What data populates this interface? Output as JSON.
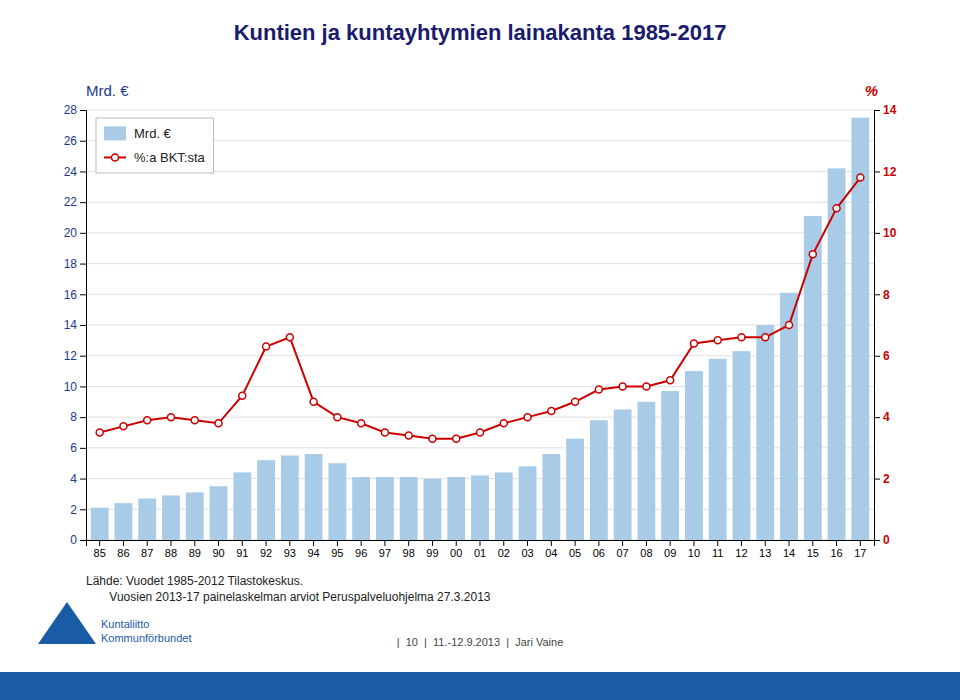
{
  "chart_data": {
    "type": "bar",
    "title": "Kuntien ja kuntayhtymien lainakanta 1985-2017",
    "ylabel": "Mrd. €",
    "y2label": "%",
    "categories": [
      "85",
      "86",
      "87",
      "88",
      "89",
      "90",
      "91",
      "92",
      "93",
      "94",
      "95",
      "96",
      "97",
      "98",
      "99",
      "00",
      "01",
      "02",
      "03",
      "04",
      "05",
      "06",
      "07",
      "08",
      "09",
      "10",
      "11",
      "12",
      "13",
      "14",
      "15",
      "16",
      "17"
    ],
    "series": [
      {
        "name": "Mrd. €",
        "type": "bar",
        "color": "#a8cce8",
        "values": [
          2.1,
          2.4,
          2.7,
          2.9,
          3.1,
          3.5,
          4.4,
          5.2,
          5.5,
          5.6,
          5.0,
          4.1,
          4.1,
          4.1,
          4.0,
          4.1,
          4.2,
          4.4,
          4.8,
          5.6,
          6.6,
          7.8,
          8.5,
          9.0,
          9.7,
          11.0,
          11.8,
          12.3,
          14.0,
          16.1,
          21.1,
          24.2,
          27.5
        ]
      },
      {
        "name": "%:a BKT:sta",
        "type": "line",
        "axis": "y2",
        "color": "#cc0000",
        "marker": "circle",
        "values": [
          3.5,
          3.7,
          3.9,
          4.0,
          3.9,
          3.8,
          4.7,
          6.3,
          6.6,
          4.5,
          4.0,
          3.8,
          3.5,
          3.4,
          3.3,
          3.3,
          3.5,
          3.8,
          4.0,
          4.2,
          4.5,
          4.9,
          5.0,
          5.0,
          5.2,
          6.4,
          6.5,
          6.6,
          6.6,
          7.0,
          9.3,
          10.8,
          11.8
        ]
      }
    ],
    "ylim": [
      0,
      28
    ],
    "yticks": [
      0,
      2,
      4,
      6,
      8,
      10,
      12,
      14,
      16,
      18,
      20,
      22,
      24,
      26,
      28
    ],
    "y2lim": [
      0,
      14
    ],
    "y2ticks": [
      0,
      2,
      4,
      6,
      8,
      10,
      12,
      14
    ],
    "grid": true,
    "legend": "upper left",
    "annotations": [
      "Lähde: Vuodet 1985-2012 Tilastokeskus.",
      "       Vuosien 2013-17 painelaskelman arviot Peruspalveluohjelma 27.3.2013",
      "|  10  |  11.-12.9.2013  |  Jari Vaine",
      "Kuntaliitto\nKommunförbundet"
    ]
  }
}
